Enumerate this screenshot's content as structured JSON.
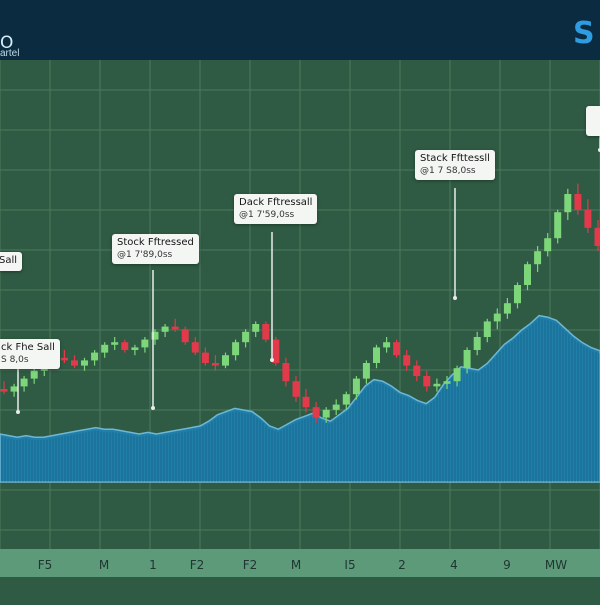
{
  "header": {
    "title": "O",
    "subtitle": "artel",
    "brand_text": "S"
  },
  "colors": {
    "background": "#2f5a43",
    "header": "#0b2c40",
    "grid": "#4d7a5e",
    "area_fill": "#1f7fa8",
    "area_stripe": "#145a7d",
    "candle_up": "#7ed67a",
    "candle_down": "#e23a4a",
    "axis_band": "#5d9a79"
  },
  "annotations": [
    {
      "title": "Sall",
      "price": ""
    },
    {
      "title": "ck Fhe Sall",
      "price": "S 8,0s"
    },
    {
      "title": "Stock Fftressed",
      "price": "@1 7'89,0ss"
    },
    {
      "title": "Dack Fftressall",
      "price": "@1 7'59,0ss"
    },
    {
      "title": "Stack Ffttessll",
      "price": "@1 7 S8,0ss"
    }
  ],
  "chart_data": {
    "type": "area",
    "x_tick_labels": [
      "F5",
      "M",
      "1",
      "F2",
      "F2",
      "M",
      "I5",
      "2",
      "4",
      "9",
      "MW"
    ],
    "grid": true,
    "series": [
      {
        "kind": "area",
        "values": [
          30,
          29,
          28,
          29,
          28,
          28,
          29,
          30,
          31,
          32,
          33,
          34,
          33,
          33,
          32,
          31,
          30,
          31,
          30,
          31,
          32,
          33,
          34,
          35,
          38,
          42,
          44,
          46,
          45,
          44,
          40,
          35,
          33,
          36,
          39,
          41,
          43,
          40,
          38,
          42,
          46,
          53,
          60,
          64,
          63,
          60,
          56,
          54,
          51,
          49,
          53,
          61,
          67,
          72,
          71,
          70,
          74,
          80,
          86,
          90,
          95,
          99,
          104,
          103,
          101,
          96,
          91,
          87,
          84,
          82
        ]
      },
      {
        "kind": "candlestick",
        "ohlc": [
          [
            35,
            38,
            33,
            34
          ],
          [
            34,
            37,
            32,
            36
          ],
          [
            36,
            40,
            34,
            39
          ],
          [
            39,
            44,
            37,
            42
          ],
          [
            42,
            46,
            40,
            45
          ],
          [
            45,
            48,
            43,
            47
          ],
          [
            47,
            50,
            45,
            46
          ],
          [
            46,
            48,
            43,
            44
          ],
          [
            44,
            47,
            42,
            46
          ],
          [
            46,
            50,
            44,
            49
          ],
          [
            49,
            53,
            47,
            52
          ],
          [
            52,
            55,
            50,
            53
          ],
          [
            53,
            54,
            49,
            50
          ],
          [
            50,
            52,
            48,
            51
          ],
          [
            51,
            55,
            49,
            54
          ],
          [
            54,
            58,
            52,
            57
          ],
          [
            57,
            60,
            55,
            59
          ],
          [
            59,
            62,
            57,
            58
          ],
          [
            58,
            59,
            52,
            53
          ],
          [
            53,
            55,
            48,
            49
          ],
          [
            49,
            51,
            44,
            45
          ],
          [
            45,
            48,
            42,
            44
          ],
          [
            44,
            49,
            43,
            48
          ],
          [
            48,
            54,
            46,
            53
          ],
          [
            53,
            58,
            51,
            57
          ],
          [
            57,
            61,
            55,
            60
          ],
          [
            60,
            61,
            53,
            54
          ],
          [
            54,
            55,
            44,
            45
          ],
          [
            45,
            47,
            36,
            38
          ],
          [
            38,
            40,
            30,
            32
          ],
          [
            32,
            35,
            26,
            28
          ],
          [
            28,
            30,
            22,
            24
          ],
          [
            24,
            28,
            22,
            27
          ],
          [
            27,
            31,
            25,
            29
          ],
          [
            29,
            34,
            27,
            33
          ],
          [
            33,
            40,
            31,
            39
          ],
          [
            39,
            46,
            37,
            45
          ],
          [
            45,
            52,
            43,
            51
          ],
          [
            51,
            55,
            49,
            53
          ],
          [
            53,
            54,
            47,
            48
          ],
          [
            48,
            50,
            42,
            44
          ],
          [
            44,
            46,
            38,
            40
          ],
          [
            40,
            42,
            34,
            36
          ],
          [
            36,
            39,
            34,
            37
          ],
          [
            37,
            40,
            35,
            38
          ],
          [
            38,
            44,
            36,
            43
          ],
          [
            43,
            51,
            41,
            50
          ],
          [
            50,
            57,
            48,
            55
          ],
          [
            55,
            62,
            53,
            61
          ],
          [
            61,
            66,
            58,
            64
          ],
          [
            64,
            70,
            62,
            68
          ],
          [
            68,
            76,
            66,
            75
          ],
          [
            75,
            84,
            73,
            83
          ],
          [
            83,
            90,
            80,
            88
          ],
          [
            88,
            95,
            86,
            93
          ],
          [
            93,
            104,
            91,
            103
          ],
          [
            103,
            112,
            100,
            110
          ],
          [
            110,
            114,
            102,
            104
          ],
          [
            104,
            108,
            95,
            97
          ],
          [
            97,
            100,
            88,
            90
          ]
        ]
      }
    ]
  }
}
